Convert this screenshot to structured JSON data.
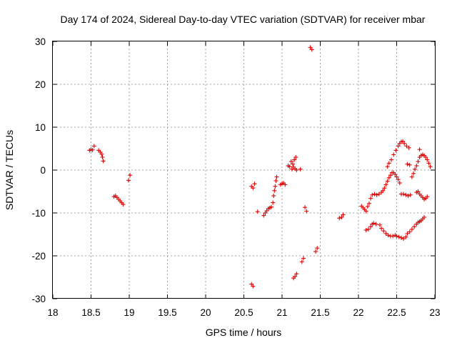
{
  "chart_data": {
    "type": "scatter",
    "title": "Day 174 of 2024, Sidereal Day-to-day VTEC variation (SDTVAR) for receiver mbar",
    "xlabel": "GPS time / hours",
    "ylabel": "SDTVAR / TECUs",
    "xlim": [
      18,
      23
    ],
    "ylim": [
      -30,
      30
    ],
    "xticks": [
      "18",
      "18.5",
      "19",
      "19.5",
      "20",
      "20.5",
      "21",
      "21.5",
      "22",
      "22.5",
      "23"
    ],
    "yticks": [
      "30",
      "20",
      "10",
      "0",
      "-10",
      "-20",
      "-30"
    ],
    "grid": true,
    "marker": "+",
    "marker_color": "#e00000",
    "series": [
      {
        "name": "SDTVAR",
        "points": [
          [
            18.48,
            4.6
          ],
          [
            18.5,
            4.8
          ],
          [
            18.52,
            4.7
          ],
          [
            18.54,
            5.6
          ],
          [
            18.6,
            4.6
          ],
          [
            18.62,
            4.2
          ],
          [
            18.64,
            3.7
          ],
          [
            18.65,
            3.0
          ],
          [
            18.66,
            2.1
          ],
          [
            18.8,
            -6.2
          ],
          [
            18.82,
            -6.0
          ],
          [
            18.84,
            -6.4
          ],
          [
            18.86,
            -6.8
          ],
          [
            18.88,
            -7.2
          ],
          [
            18.9,
            -7.6
          ],
          [
            18.92,
            -8.0
          ],
          [
            18.99,
            -2.4
          ],
          [
            19.01,
            -1.2
          ],
          [
            20.6,
            -3.8
          ],
          [
            20.62,
            -4.2
          ],
          [
            20.64,
            -3.2
          ],
          [
            20.6,
            -26.6
          ],
          [
            20.62,
            -27.1
          ],
          [
            20.68,
            -9.7
          ],
          [
            20.76,
            -10.6
          ],
          [
            20.78,
            -10.0
          ],
          [
            20.8,
            -9.5
          ],
          [
            20.82,
            -9.0
          ],
          [
            20.84,
            -8.8
          ],
          [
            20.86,
            -8.6
          ],
          [
            20.88,
            -7.6
          ],
          [
            20.89,
            -6.0
          ],
          [
            20.9,
            -4.8
          ],
          [
            20.91,
            -3.8
          ],
          [
            20.92,
            -2.5
          ],
          [
            20.93,
            -1.6
          ],
          [
            20.98,
            -3.4
          ],
          [
            21.0,
            -3.2
          ],
          [
            21.02,
            -3.0
          ],
          [
            21.04,
            -3.4
          ],
          [
            21.08,
            1.0
          ],
          [
            21.1,
            0.8
          ],
          [
            21.12,
            2.0
          ],
          [
            21.13,
            0.2
          ],
          [
            21.14,
            1.4
          ],
          [
            21.15,
            0.7
          ],
          [
            21.16,
            2.4
          ],
          [
            21.17,
            0.3
          ],
          [
            21.18,
            3.0
          ],
          [
            21.19,
            0.0
          ],
          [
            21.15,
            -25.2
          ],
          [
            21.17,
            -24.8
          ],
          [
            21.19,
            -24.2
          ],
          [
            21.24,
            0.2
          ],
          [
            21.26,
            -21.4
          ],
          [
            21.28,
            -20.6
          ],
          [
            21.3,
            -8.7
          ],
          [
            21.32,
            -9.6
          ],
          [
            21.37,
            28.6
          ],
          [
            21.39,
            28.1
          ],
          [
            21.44,
            -19.0
          ],
          [
            21.46,
            -18.2
          ],
          [
            21.75,
            -11.2
          ],
          [
            21.78,
            -11.0
          ],
          [
            21.8,
            -10.4
          ],
          [
            22.04,
            -8.4
          ],
          [
            22.06,
            -8.8
          ],
          [
            22.08,
            -9.2
          ],
          [
            22.1,
            -9.6
          ],
          [
            22.1,
            -14.0
          ],
          [
            22.13,
            -13.8
          ],
          [
            22.16,
            -13.2
          ],
          [
            22.18,
            -12.6
          ],
          [
            22.2,
            -12.4
          ],
          [
            22.23,
            -12.6
          ],
          [
            22.12,
            -8.5
          ],
          [
            22.14,
            -7.8
          ],
          [
            22.16,
            -6.6
          ],
          [
            22.18,
            -5.8
          ],
          [
            22.21,
            -5.6
          ],
          [
            22.24,
            -5.8
          ],
          [
            22.27,
            -5.6
          ],
          [
            22.3,
            -5.2
          ],
          [
            22.32,
            -4.8
          ],
          [
            22.34,
            -4.2
          ],
          [
            22.36,
            -3.4
          ],
          [
            22.38,
            -2.6
          ],
          [
            22.4,
            -1.8
          ],
          [
            22.42,
            -1.2
          ],
          [
            22.44,
            -0.6
          ],
          [
            22.46,
            -0.6
          ],
          [
            22.48,
            -1.0
          ],
          [
            22.5,
            -1.6
          ],
          [
            22.52,
            -2.2
          ],
          [
            22.54,
            -3.0
          ],
          [
            22.28,
            -12.8
          ],
          [
            22.3,
            -13.6
          ],
          [
            22.33,
            -14.2
          ],
          [
            22.36,
            -14.8
          ],
          [
            22.39,
            -15.2
          ],
          [
            22.42,
            -15.4
          ],
          [
            22.45,
            -15.4
          ],
          [
            22.48,
            -15.2
          ],
          [
            22.5,
            -15.4
          ],
          [
            22.53,
            -15.6
          ],
          [
            22.56,
            -15.8
          ],
          [
            22.59,
            -16.0
          ],
          [
            22.62,
            -15.6
          ],
          [
            22.64,
            -14.8
          ],
          [
            22.67,
            -14.4
          ],
          [
            22.7,
            -13.8
          ],
          [
            22.73,
            -13.2
          ],
          [
            22.76,
            -12.6
          ],
          [
            22.78,
            -12.2
          ],
          [
            22.8,
            -12.0
          ],
          [
            22.82,
            -11.8
          ],
          [
            22.84,
            -11.4
          ],
          [
            22.86,
            -11.0
          ],
          [
            22.38,
            0.8
          ],
          [
            22.4,
            1.6
          ],
          [
            22.43,
            2.4
          ],
          [
            22.46,
            3.6
          ],
          [
            22.49,
            4.6
          ],
          [
            22.52,
            5.6
          ],
          [
            22.54,
            6.2
          ],
          [
            22.56,
            6.6
          ],
          [
            22.58,
            6.7
          ],
          [
            22.6,
            6.2
          ],
          [
            22.63,
            5.6
          ],
          [
            22.66,
            5.2
          ],
          [
            22.56,
            -5.6
          ],
          [
            22.59,
            -5.6
          ],
          [
            22.62,
            -5.8
          ],
          [
            22.65,
            -6.0
          ],
          [
            22.68,
            -5.8
          ],
          [
            22.64,
            1.4
          ],
          [
            22.67,
            1.2
          ],
          [
            22.7,
            -1.6
          ],
          [
            22.72,
            -0.8
          ],
          [
            22.74,
            0.2
          ],
          [
            22.76,
            1.0
          ],
          [
            22.78,
            2.0
          ],
          [
            22.8,
            3.0
          ],
          [
            22.82,
            3.4
          ],
          [
            22.84,
            3.6
          ],
          [
            22.86,
            3.4
          ],
          [
            22.88,
            3.0
          ],
          [
            22.9,
            2.4
          ],
          [
            22.92,
            1.6
          ],
          [
            22.94,
            0.8
          ],
          [
            22.76,
            -5.2
          ],
          [
            22.78,
            -5.0
          ],
          [
            22.8,
            -5.6
          ],
          [
            22.82,
            -6.0
          ],
          [
            22.84,
            -6.4
          ],
          [
            22.86,
            -6.8
          ],
          [
            22.88,
            -6.6
          ],
          [
            22.9,
            -6.2
          ],
          [
            22.8,
            4.8
          ]
        ]
      }
    ]
  }
}
